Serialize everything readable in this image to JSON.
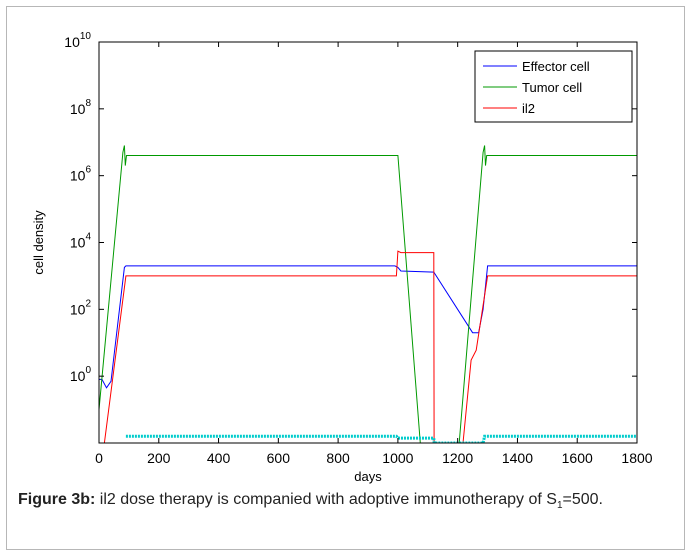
{
  "chart_data": {
    "type": "line",
    "xlabel": "days",
    "ylabel": "cell density",
    "xlim": [
      0,
      1800
    ],
    "ylim": [
      0.01,
      10000000000
    ],
    "yscale": "log",
    "x_ticks": [
      "0",
      "200",
      "400",
      "600",
      "800",
      "1000",
      "1200",
      "1400",
      "1600",
      "1800"
    ],
    "x_tick_values": [
      0,
      200,
      400,
      600,
      800,
      1000,
      1200,
      1400,
      1600,
      1800
    ],
    "y_ticks": [
      {
        "base": "10",
        "exp": "0",
        "value": 1
      },
      {
        "base": "10",
        "exp": "2",
        "value": 100
      },
      {
        "base": "10",
        "exp": "4",
        "value": 10000
      },
      {
        "base": "10",
        "exp": "6",
        "value": 1000000
      },
      {
        "base": "10",
        "exp": "8",
        "value": 100000000
      },
      {
        "base": "10",
        "exp": "10",
        "value": 10000000000
      }
    ],
    "grid": false,
    "legend_position": "top-right",
    "series": [
      {
        "name": "Effector cell",
        "color": "#0000ff",
        "points": [
          [
            0,
            0.8
          ],
          [
            10,
            0.8
          ],
          [
            25,
            0.45
          ],
          [
            40,
            0.7
          ],
          [
            85,
            1800
          ],
          [
            90,
            2000
          ],
          [
            400,
            2000
          ],
          [
            990,
            2000
          ],
          [
            1000,
            1800
          ],
          [
            1010,
            1400
          ],
          [
            1120,
            1300
          ],
          [
            1250,
            20
          ],
          [
            1270,
            20
          ],
          [
            1285,
            100
          ],
          [
            1300,
            2000
          ],
          [
            1800,
            2000
          ]
        ]
      },
      {
        "name": "Tumor cell",
        "color": "#009900",
        "points": [
          [
            0,
            0.1
          ],
          [
            80,
            5000000
          ],
          [
            85,
            8000000
          ],
          [
            88,
            2000000
          ],
          [
            92,
            4000000
          ],
          [
            400,
            4000000
          ],
          [
            1000,
            4000000
          ],
          [
            1075,
            0.01
          ],
          [
            1195,
            0.01
          ],
          [
            1205,
            0.01
          ],
          [
            1285,
            5000000
          ],
          [
            1290,
            8000000
          ],
          [
            1293,
            2000000
          ],
          [
            1297,
            4000000
          ],
          [
            1800,
            4000000
          ]
        ]
      },
      {
        "name": "il2",
        "color": "#ff0000",
        "points": [
          [
            0,
            0.01
          ],
          [
            18,
            0.01
          ],
          [
            90,
            1000
          ],
          [
            400,
            1000
          ],
          [
            995,
            1000
          ],
          [
            1000,
            5500
          ],
          [
            1010,
            5000
          ],
          [
            1120,
            5000
          ],
          [
            1121,
            0.01
          ],
          [
            1218,
            0.01
          ],
          [
            1245,
            3
          ],
          [
            1262,
            6
          ],
          [
            1300,
            1000
          ],
          [
            1800,
            1000
          ]
        ]
      },
      {
        "name": "",
        "color": "#00cccc",
        "points": [
          [
            90,
            0.016
          ],
          [
            995,
            0.016
          ],
          [
            1000,
            0.014
          ],
          [
            1120,
            0.014
          ],
          [
            1121,
            0.01
          ],
          [
            1285,
            0.01
          ],
          [
            1290,
            0.016
          ],
          [
            1800,
            0.016
          ]
        ]
      }
    ],
    "caption_label": "Figure 3b:",
    "caption_text": " il2 dose therapy is companied with adoptive immunotherapy of S",
    "caption_sub": "1",
    "caption_tail": "=500."
  }
}
